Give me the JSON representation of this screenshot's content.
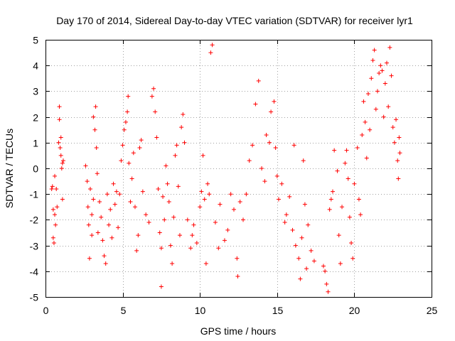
{
  "chart_data": {
    "type": "scatter",
    "title": "Day 170 of 2014, Sidereal Day-to-day VTEC variation (SDTVAR) for receiver lyr1",
    "xlabel": "GPS time / hours",
    "ylabel": "SDTVAR / TECUs",
    "xlim": [
      0,
      25
    ],
    "ylim": [
      -5,
      5
    ],
    "xticks": [
      0,
      5,
      10,
      15,
      20,
      25
    ],
    "yticks": [
      -5,
      -4,
      -3,
      -2,
      -1,
      0,
      1,
      2,
      3,
      4,
      5
    ],
    "grid": true,
    "marker": "+",
    "color": "#ff0000",
    "series": [
      {
        "name": "SDTVAR",
        "points": [
          [
            0.4,
            -0.8
          ],
          [
            0.45,
            -0.7
          ],
          [
            0.5,
            -1.6
          ],
          [
            0.5,
            -2.7
          ],
          [
            0.55,
            -2.9
          ],
          [
            0.6,
            -0.3
          ],
          [
            0.6,
            -1.8
          ],
          [
            0.65,
            -2.2
          ],
          [
            0.7,
            -0.8
          ],
          [
            0.75,
            -1.5
          ],
          [
            0.85,
            1.0
          ],
          [
            0.9,
            2.4
          ],
          [
            0.9,
            1.9
          ],
          [
            0.95,
            0.8
          ],
          [
            1.0,
            0.5
          ],
          [
            1.0,
            1.2
          ],
          [
            1.05,
            0.0
          ],
          [
            1.1,
            0.2
          ],
          [
            1.15,
            0.3
          ],
          [
            1.1,
            -1.2
          ],
          [
            2.6,
            0.1
          ],
          [
            2.7,
            -0.5
          ],
          [
            2.75,
            -1.5
          ],
          [
            2.8,
            -2.2
          ],
          [
            2.85,
            -3.5
          ],
          [
            2.9,
            -0.8
          ],
          [
            3.0,
            -1.8
          ],
          [
            3.0,
            -2.6
          ],
          [
            3.1,
            -1.2
          ],
          [
            3.1,
            2.0
          ],
          [
            3.2,
            1.5
          ],
          [
            3.25,
            2.4
          ],
          [
            3.3,
            0.8
          ],
          [
            3.35,
            -0.2
          ],
          [
            3.4,
            -2.5
          ],
          [
            3.5,
            -1.3
          ],
          [
            3.6,
            -1.9
          ],
          [
            3.7,
            -2.8
          ],
          [
            3.8,
            -3.4
          ],
          [
            3.9,
            -3.7
          ],
          [
            4.0,
            -1.0
          ],
          [
            4.1,
            -2.2
          ],
          [
            4.2,
            -1.6
          ],
          [
            4.3,
            -2.7
          ],
          [
            4.4,
            -0.6
          ],
          [
            4.5,
            -1.4
          ],
          [
            4.6,
            -0.9
          ],
          [
            4.7,
            -2.3
          ],
          [
            4.8,
            -1.0
          ],
          [
            4.9,
            0.3
          ],
          [
            5.0,
            0.9
          ],
          [
            5.1,
            1.5
          ],
          [
            5.2,
            1.8
          ],
          [
            5.3,
            2.2
          ],
          [
            5.35,
            2.8
          ],
          [
            5.4,
            0.2
          ],
          [
            5.5,
            -1.3
          ],
          [
            5.6,
            -0.4
          ],
          [
            5.7,
            0.6
          ],
          [
            5.8,
            -1.5
          ],
          [
            5.9,
            -3.2
          ],
          [
            6.0,
            -2.6
          ],
          [
            6.1,
            0.8
          ],
          [
            6.2,
            1.1
          ],
          [
            6.3,
            -0.9
          ],
          [
            6.5,
            -1.8
          ],
          [
            6.7,
            -2.1
          ],
          [
            6.9,
            2.8
          ],
          [
            7.0,
            3.1
          ],
          [
            7.1,
            2.2
          ],
          [
            7.2,
            1.2
          ],
          [
            7.3,
            -0.8
          ],
          [
            7.4,
            -2.5
          ],
          [
            7.5,
            -3.1
          ],
          [
            7.5,
            -4.6
          ],
          [
            7.6,
            -1.1
          ],
          [
            7.7,
            -2.0
          ],
          [
            7.8,
            0.1
          ],
          [
            7.9,
            -0.6
          ],
          [
            8.0,
            -1.3
          ],
          [
            8.1,
            -3.0
          ],
          [
            8.2,
            -3.7
          ],
          [
            8.3,
            -1.9
          ],
          [
            8.4,
            0.5
          ],
          [
            8.5,
            0.9
          ],
          [
            8.6,
            -0.7
          ],
          [
            8.7,
            -2.6
          ],
          [
            8.8,
            1.6
          ],
          [
            8.9,
            2.1
          ],
          [
            9.0,
            1.0
          ],
          [
            9.2,
            -2.0
          ],
          [
            9.4,
            -3.1
          ],
          [
            9.5,
            -2.6
          ],
          [
            9.6,
            -2.2
          ],
          [
            9.8,
            -2.9
          ],
          [
            10.0,
            -1.5
          ],
          [
            10.1,
            -0.9
          ],
          [
            10.2,
            0.5
          ],
          [
            10.3,
            -1.2
          ],
          [
            10.4,
            -3.7
          ],
          [
            10.5,
            -0.6
          ],
          [
            10.6,
            -1.0
          ],
          [
            10.7,
            4.5
          ],
          [
            10.8,
            4.8
          ],
          [
            11.0,
            -2.1
          ],
          [
            11.2,
            -3.1
          ],
          [
            11.3,
            -1.4
          ],
          [
            11.6,
            -2.8
          ],
          [
            11.8,
            -2.4
          ],
          [
            12.0,
            -1.0
          ],
          [
            12.2,
            -1.6
          ],
          [
            12.4,
            -3.5
          ],
          [
            12.45,
            -4.2
          ],
          [
            12.6,
            -1.3
          ],
          [
            12.8,
            -2.0
          ],
          [
            13.0,
            -1.0
          ],
          [
            13.2,
            0.3
          ],
          [
            13.4,
            0.9
          ],
          [
            13.6,
            2.5
          ],
          [
            13.8,
            3.4
          ],
          [
            14.0,
            0.0
          ],
          [
            14.2,
            -0.5
          ],
          [
            14.3,
            1.3
          ],
          [
            14.5,
            1.0
          ],
          [
            14.6,
            2.2
          ],
          [
            14.8,
            2.6
          ],
          [
            14.9,
            0.8
          ],
          [
            15.0,
            -0.3
          ],
          [
            15.1,
            -1.2
          ],
          [
            15.3,
            -0.6
          ],
          [
            15.5,
            -2.1
          ],
          [
            15.6,
            -1.8
          ],
          [
            15.8,
            -1.1
          ],
          [
            16.0,
            -2.4
          ],
          [
            16.1,
            0.9
          ],
          [
            16.2,
            -3.0
          ],
          [
            16.4,
            -3.5
          ],
          [
            16.5,
            -4.3
          ],
          [
            16.6,
            -2.7
          ],
          [
            16.7,
            0.3
          ],
          [
            16.8,
            -1.4
          ],
          [
            16.9,
            -3.9
          ],
          [
            17.0,
            -2.2
          ],
          [
            17.2,
            -3.2
          ],
          [
            17.4,
            -3.6
          ],
          [
            18.0,
            -3.8
          ],
          [
            18.1,
            -4.0
          ],
          [
            18.2,
            -4.5
          ],
          [
            18.3,
            -4.8
          ],
          [
            18.4,
            -1.6
          ],
          [
            18.5,
            -1.2
          ],
          [
            18.6,
            -0.9
          ],
          [
            18.7,
            0.7
          ],
          [
            18.9,
            -0.1
          ],
          [
            19.0,
            -2.6
          ],
          [
            19.1,
            -3.7
          ],
          [
            19.2,
            -1.5
          ],
          [
            19.4,
            0.2
          ],
          [
            19.5,
            0.7
          ],
          [
            19.6,
            -0.4
          ],
          [
            19.7,
            -1.9
          ],
          [
            19.8,
            -2.9
          ],
          [
            19.9,
            -3.5
          ],
          [
            20.0,
            -0.6
          ],
          [
            20.2,
            0.8
          ],
          [
            20.3,
            -1.2
          ],
          [
            20.4,
            -1.8
          ],
          [
            20.5,
            1.3
          ],
          [
            20.6,
            2.6
          ],
          [
            20.7,
            1.8
          ],
          [
            20.8,
            0.4
          ],
          [
            20.9,
            2.9
          ],
          [
            21.0,
            1.5
          ],
          [
            21.1,
            3.5
          ],
          [
            21.2,
            4.2
          ],
          [
            21.3,
            4.6
          ],
          [
            21.4,
            2.3
          ],
          [
            21.5,
            3.0
          ],
          [
            21.6,
            3.7
          ],
          [
            21.7,
            4.0
          ],
          [
            21.8,
            3.8
          ],
          [
            21.9,
            2.0
          ],
          [
            22.0,
            3.3
          ],
          [
            22.1,
            4.1
          ],
          [
            22.2,
            2.4
          ],
          [
            22.3,
            4.7
          ],
          [
            22.4,
            3.6
          ],
          [
            22.5,
            1.6
          ],
          [
            22.6,
            1.0
          ],
          [
            22.7,
            1.9
          ],
          [
            22.8,
            0.3
          ],
          [
            22.85,
            -0.4
          ],
          [
            22.9,
            1.2
          ],
          [
            22.95,
            0.6
          ]
        ]
      }
    ]
  }
}
